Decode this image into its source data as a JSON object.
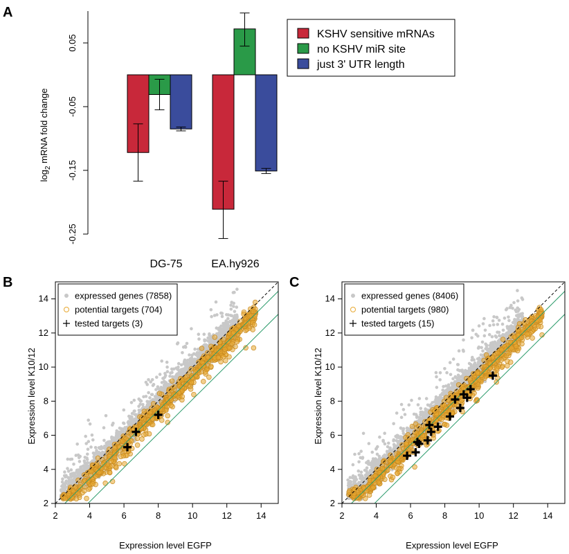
{
  "colors": {
    "kshv_sensitive": "#c8283a",
    "no_mir_site": "#2a9a48",
    "utr_length": "#3a4c9c",
    "expressed": "#c8c8c8",
    "potential": "#e8a830",
    "tested": "#000000",
    "diagonal_fit": "#2a9a6a"
  },
  "panel_labels": {
    "a": "A",
    "b": "B",
    "c": "C"
  },
  "chart_data": [
    {
      "type": "bar",
      "panel": "A",
      "ylabel_prefix": "log",
      "ylabel_sub": "2",
      "ylabel_suffix": " mRNA fold change",
      "categories": [
        "DG-75",
        "EA.hy926"
      ],
      "ylim": [
        -0.25,
        0.1
      ],
      "yticks": [
        -0.25,
        -0.15,
        -0.05,
        0.05
      ],
      "ytick_labels": [
        "-0.25",
        "-0.15",
        "-0.05",
        "0.05"
      ],
      "legend": "top-right",
      "series": [
        {
          "name": "KSHV sensitive mRNAs",
          "values": [
            -0.122,
            -0.211
          ],
          "err_low": [
            -0.167,
            -0.257
          ],
          "err_high": [
            -0.077,
            -0.167
          ]
        },
        {
          "name": "no KSHV miR site",
          "values": [
            -0.031,
            0.072
          ],
          "err_low": [
            -0.055,
            0.045
          ],
          "err_high": [
            -0.007,
            0.097
          ]
        },
        {
          "name": "just 3' UTR length",
          "values": [
            -0.085,
            -0.151
          ],
          "err_low": [
            -0.088,
            -0.155
          ],
          "err_high": [
            -0.082,
            -0.147
          ]
        }
      ]
    },
    {
      "type": "scatter",
      "panel": "B",
      "xlabel": "Expression level EGFP",
      "ylabel": "Expression level K10/12",
      "xlim": [
        2,
        15
      ],
      "ylim": [
        2,
        15
      ],
      "xticks": [
        2,
        4,
        6,
        8,
        10,
        12,
        14
      ],
      "yticks": [
        2,
        4,
        6,
        8,
        10,
        12,
        14
      ],
      "legend": "top-left",
      "series": [
        {
          "name": "expressed genes (7858)"
        },
        {
          "name": "potential targets (704)"
        },
        {
          "name": "tested targets (3)",
          "x": [
            6.2,
            6.7,
            8.0
          ],
          "y": [
            5.3,
            6.2,
            7.2
          ]
        }
      ]
    },
    {
      "type": "scatter",
      "panel": "C",
      "xlabel": "Expression level EGFP",
      "ylabel": "Expression level K10/12",
      "xlim": [
        2,
        15
      ],
      "ylim": [
        2,
        15
      ],
      "xticks": [
        2,
        4,
        6,
        8,
        10,
        12,
        14
      ],
      "yticks": [
        2,
        4,
        6,
        8,
        10,
        12,
        14
      ],
      "legend": "top-left",
      "series": [
        {
          "name": "expressed genes (8406)"
        },
        {
          "name": "potential targets (980)"
        },
        {
          "name": "tested targets (15)",
          "x": [
            5.8,
            6.3,
            6.4,
            6.5,
            7.0,
            7.1,
            7.2,
            7.6,
            8.3,
            8.6,
            8.9,
            9.1,
            9.3,
            9.5,
            10.8
          ],
          "y": [
            4.8,
            5.0,
            5.6,
            5.5,
            5.7,
            6.6,
            6.2,
            6.5,
            7.1,
            8.1,
            7.6,
            8.4,
            8.2,
            8.7,
            9.5
          ]
        }
      ]
    }
  ]
}
